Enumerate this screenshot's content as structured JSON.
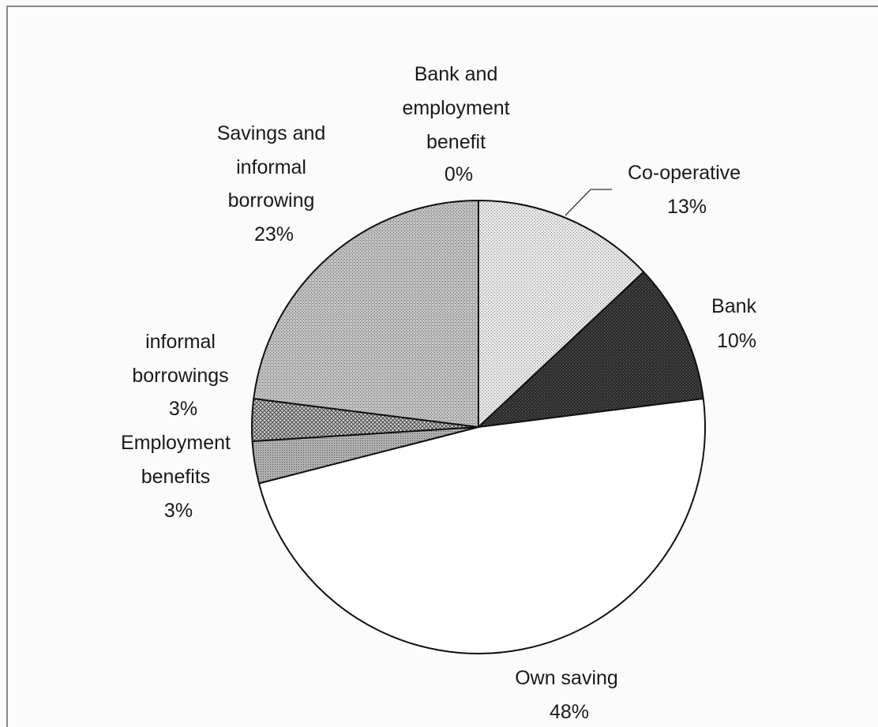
{
  "chart_data": {
    "type": "pie",
    "title": "",
    "start_angle_deg": 0,
    "direction": "clockwise",
    "slices": [
      {
        "label_lines": [
          "Bank and",
          "employment",
          "benefit"
        ],
        "value": 0,
        "percent_label": "0%",
        "fill": "none",
        "color": "#ffffff"
      },
      {
        "label_lines": [
          "Co-operative"
        ],
        "value": 13,
        "percent_label": "13%",
        "fill": "dots-light",
        "color": "#d8d8d8"
      },
      {
        "label_lines": [
          "Bank"
        ],
        "value": 10,
        "percent_label": "10%",
        "fill": "dark",
        "color": "#3a3a3a"
      },
      {
        "label_lines": [
          "Own saving"
        ],
        "value": 48,
        "percent_label": "48%",
        "fill": "white",
        "color": "#ffffff"
      },
      {
        "label_lines": [
          "Employment",
          "benefits"
        ],
        "value": 3,
        "percent_label": "3%",
        "fill": "medium",
        "color": "#9e9e9e"
      },
      {
        "label_lines": [
          "informal",
          "borrowings"
        ],
        "value": 3,
        "percent_label": "3%",
        "fill": "crosshatch",
        "color": "#8a8a8a"
      },
      {
        "label_lines": [
          "Savings and",
          "informal",
          "borrowing"
        ],
        "value": 23,
        "percent_label": "23%",
        "fill": "medium-dots",
        "color": "#b4b4b4"
      }
    ]
  }
}
